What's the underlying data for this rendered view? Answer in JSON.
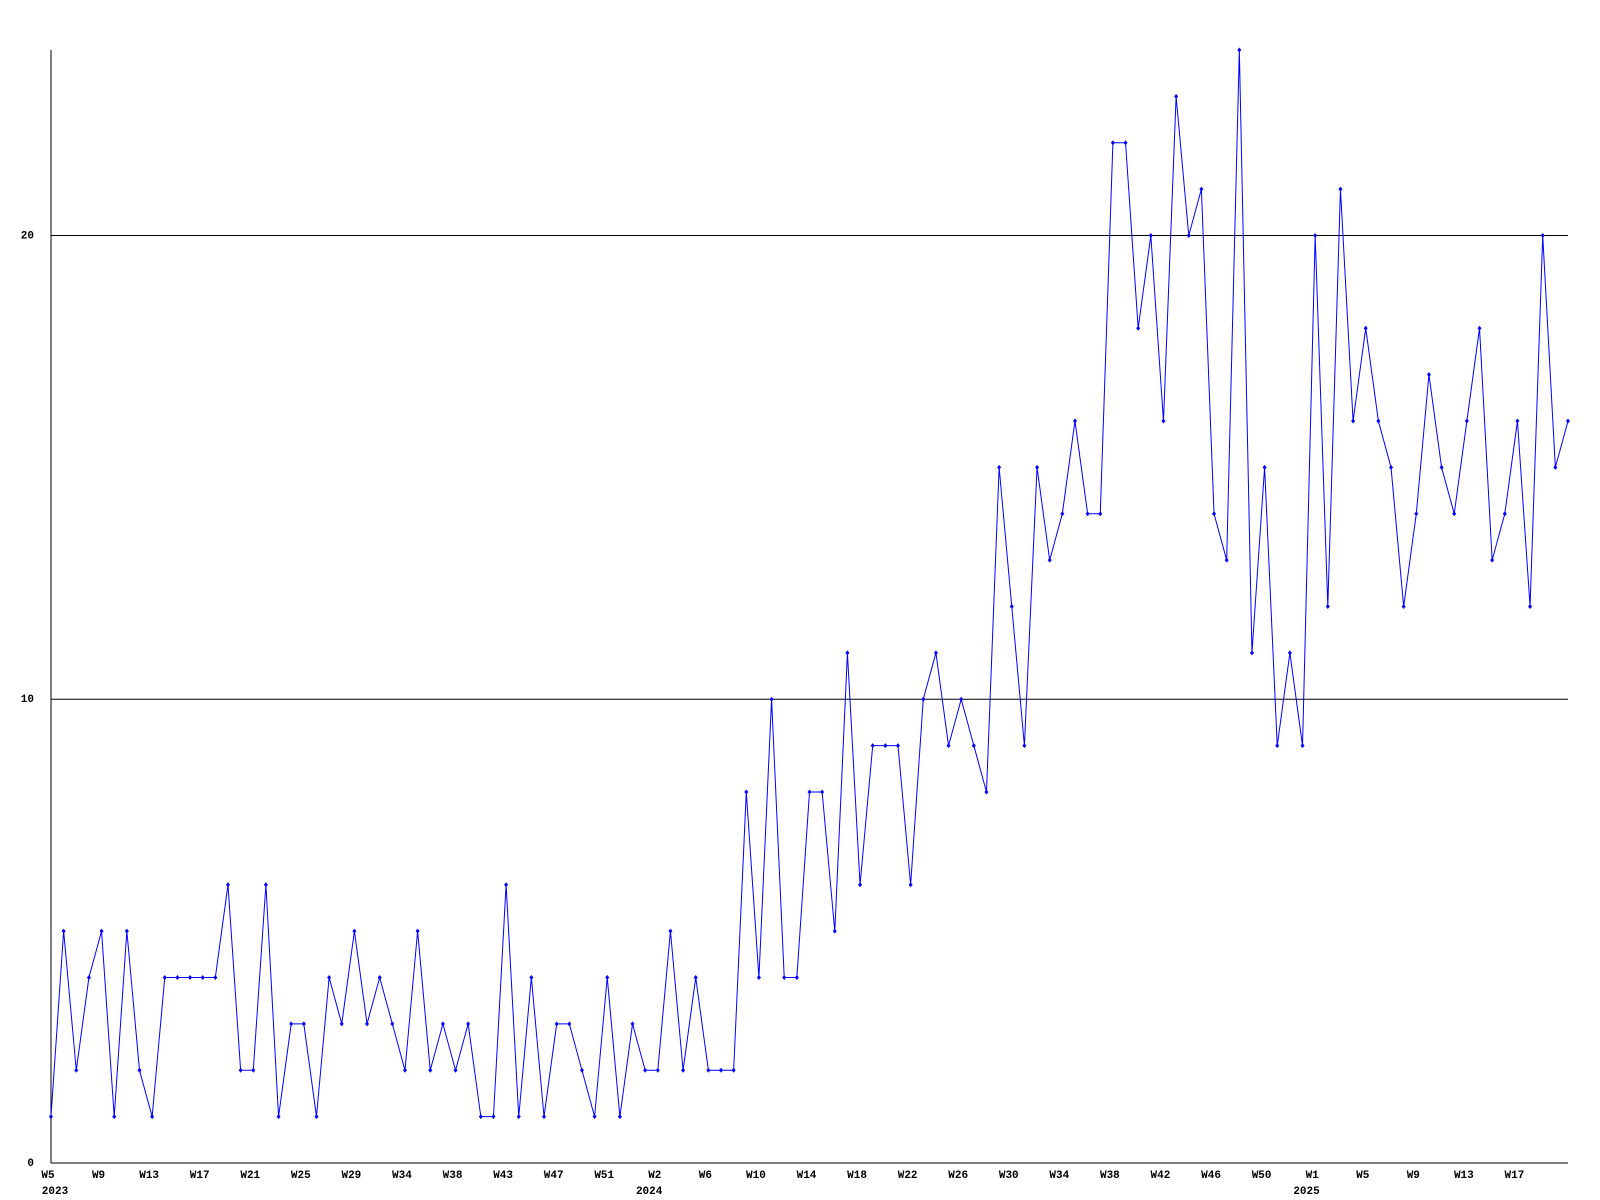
{
  "chart_data": {
    "type": "line",
    "color": "#0000ff",
    "grid": true,
    "ylim": [
      0,
      24
    ],
    "yticks": [
      0,
      10,
      20
    ],
    "categories": [
      "W5",
      null,
      null,
      null,
      "W9",
      null,
      null,
      null,
      "W13",
      null,
      null,
      null,
      "W17",
      null,
      null,
      null,
      "W21",
      null,
      null,
      null,
      "W25",
      null,
      null,
      null,
      "W29",
      null,
      null,
      null,
      "W34",
      null,
      null,
      null,
      "W38",
      null,
      null,
      null,
      "W43",
      null,
      null,
      null,
      "W47",
      null,
      null,
      null,
      "W51",
      null,
      null,
      null,
      "W2",
      null,
      null,
      null,
      "W6",
      null,
      null,
      null,
      "W10",
      null,
      null,
      null,
      "W14",
      null,
      null,
      null,
      "W18",
      null,
      null,
      null,
      "W22",
      null,
      null,
      null,
      "W26",
      null,
      null,
      null,
      "W30",
      null,
      null,
      null,
      "W34",
      null,
      null,
      null,
      "W38",
      null,
      null,
      null,
      "W42",
      null,
      null,
      null,
      "W46",
      null,
      null,
      null,
      "W50",
      null,
      null,
      null,
      "W1",
      null,
      null,
      null,
      "W5",
      null,
      null,
      null,
      "W9",
      null,
      null,
      null,
      "W13",
      null,
      null,
      null,
      "W17",
      null,
      null,
      null,
      null
    ],
    "year_labels": [
      "2023",
      null,
      null,
      null,
      null,
      null,
      null,
      null,
      null,
      null,
      null,
      null,
      null,
      null,
      null,
      null,
      null,
      null,
      null,
      null,
      null,
      null,
      null,
      null,
      null,
      null,
      null,
      null,
      null,
      null,
      null,
      null,
      null,
      null,
      null,
      null,
      null,
      null,
      null,
      null,
      null,
      null,
      null,
      null,
      null,
      null,
      null,
      "2024",
      null,
      null,
      null,
      null,
      null,
      null,
      null,
      null,
      null,
      null,
      null,
      null,
      null,
      null,
      null,
      null,
      null,
      null,
      null,
      null,
      null,
      null,
      null,
      null,
      null,
      null,
      null,
      null,
      null,
      null,
      null,
      null,
      null,
      null,
      null,
      null,
      null,
      null,
      null,
      null,
      null,
      null,
      null,
      null,
      null,
      null,
      null,
      null,
      null,
      null,
      null,
      "2025",
      null,
      null,
      null,
      null,
      null,
      null,
      null,
      null,
      null,
      null,
      null,
      null,
      null,
      null,
      null,
      null,
      null,
      null,
      null,
      null,
      null
    ],
    "values": [
      1,
      5,
      2,
      4,
      5,
      1,
      5,
      2,
      1,
      4,
      4,
      4,
      4,
      4,
      6,
      2,
      2,
      6,
      1,
      3,
      3,
      1,
      4,
      3,
      5,
      3,
      4,
      3,
      2,
      5,
      2,
      3,
      2,
      3,
      1,
      1,
      6,
      1,
      4,
      1,
      3,
      3,
      2,
      1,
      4,
      1,
      3,
      2,
      2,
      5,
      2,
      4,
      2,
      2,
      2,
      8,
      4,
      10,
      4,
      4,
      8,
      8,
      5,
      11,
      6,
      9,
      9,
      9,
      6,
      10,
      11,
      9,
      10,
      9,
      8,
      15,
      12,
      9,
      15,
      13,
      14,
      16,
      14,
      14,
      22,
      22,
      18,
      20,
      16,
      23,
      20,
      21,
      14,
      13,
      24,
      11,
      15,
      9,
      11,
      9,
      20,
      12,
      21,
      16,
      18,
      16,
      15,
      12,
      14,
      17,
      15,
      14,
      16,
      18,
      13,
      14,
      16,
      12,
      20,
      15,
      16
    ]
  }
}
